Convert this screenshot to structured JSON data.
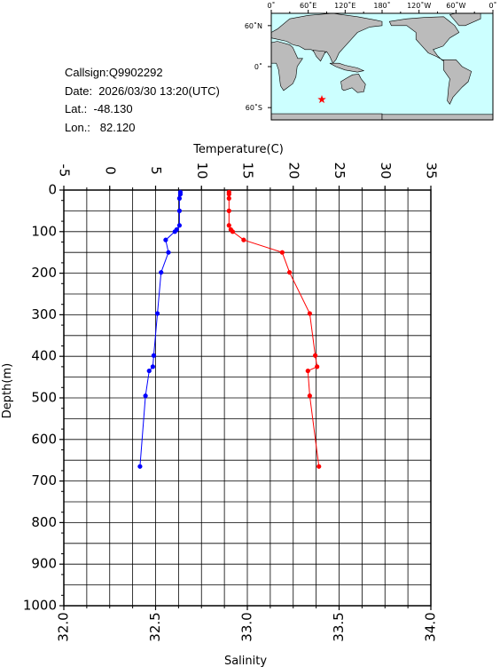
{
  "station": {
    "callsign": "Callsign:Q9902292",
    "date": "Date:  2026/03/30 13:20(UTC)",
    "lat": "Lat.:  -48.130",
    "lon": "Lon.:   82.120"
  },
  "map": {
    "top_labels": [
      "0˚",
      "60˚E",
      "120˚E",
      "180˚",
      "120˚W",
      "60˚W",
      "0˚"
    ],
    "lat_labels": [
      "60˚N",
      "0˚",
      "60˚S"
    ],
    "ocean_color": "#ccffff",
    "land_color": "#bbbbbb",
    "marker": {
      "lon": 82.12,
      "lat": -48.13,
      "color": "#ff0000",
      "icon": "star-icon"
    }
  },
  "chart_data": {
    "type": "line",
    "y": {
      "label": "Depth(m)",
      "range": [
        0,
        1000
      ],
      "inverted": true,
      "ticks": [
        "0",
        "100",
        "200",
        "300",
        "400",
        "500",
        "600",
        "700",
        "800",
        "900",
        "1000"
      ]
    },
    "x_top": {
      "label": "Temperature(C)",
      "range": [
        -5,
        35
      ],
      "ticks": [
        "-5",
        "0",
        "5",
        "10",
        "15",
        "20",
        "25",
        "30",
        "35"
      ]
    },
    "x_bottom": {
      "label": "Salinity",
      "range": [
        32.0,
        34.0
      ],
      "ticks": [
        "32.0",
        "32.5",
        "33.0",
        "33.5",
        "34.0"
      ]
    },
    "grid": true,
    "series": [
      {
        "axis": "top",
        "color": "#0000ff",
        "points": [
          [
            7.7,
            5
          ],
          [
            7.7,
            10
          ],
          [
            7.6,
            20
          ],
          [
            7.6,
            50
          ],
          [
            7.6,
            85
          ],
          [
            7.3,
            95
          ],
          [
            7.1,
            100
          ],
          [
            6.1,
            120
          ],
          [
            6.4,
            150
          ],
          [
            5.6,
            198
          ],
          [
            5.2,
            297
          ],
          [
            4.8,
            398
          ],
          [
            4.7,
            425
          ],
          [
            4.3,
            435
          ],
          [
            3.9,
            495
          ],
          [
            3.3,
            665
          ]
        ]
      },
      {
        "axis": "bottom",
        "color": "#ff0000",
        "points": [
          [
            32.9,
            5
          ],
          [
            32.9,
            10
          ],
          [
            32.9,
            20
          ],
          [
            32.9,
            50
          ],
          [
            32.9,
            85
          ],
          [
            32.91,
            95
          ],
          [
            32.92,
            100
          ],
          [
            32.98,
            120
          ],
          [
            33.19,
            150
          ],
          [
            33.23,
            198
          ],
          [
            33.34,
            297
          ],
          [
            33.37,
            398
          ],
          [
            33.38,
            425
          ],
          [
            33.33,
            435
          ],
          [
            33.34,
            495
          ],
          [
            33.39,
            665
          ]
        ]
      }
    ]
  }
}
